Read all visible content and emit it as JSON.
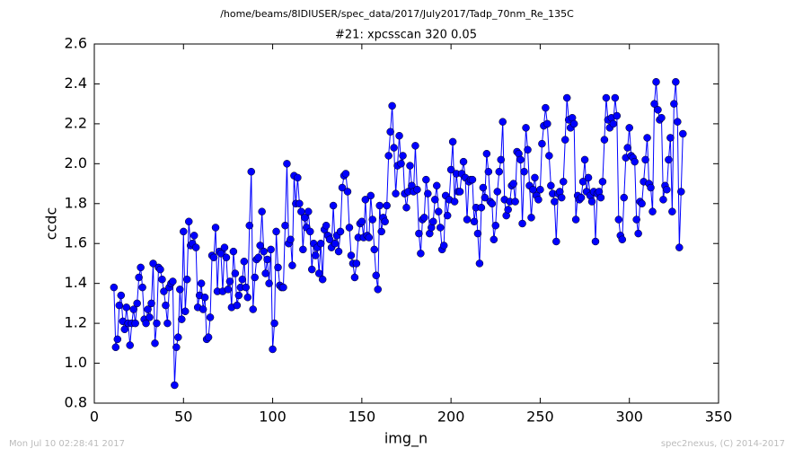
{
  "chart_data": {
    "type": "line",
    "title": "/home/beams/8IDIUSER/spec_data/2017/July2017/Tadp_70nm_Re_135C",
    "subtitle": "#21: xpcsscan 320 0.05",
    "x_label": "img_n",
    "y_label": "ccdc",
    "footer_left": "Mon Jul 10 02:28:41 2017",
    "footer_right": "spec2nexus, (C) 2014-2017",
    "xlim": [
      0,
      350
    ],
    "xticks": [
      0,
      50,
      100,
      150,
      200,
      250,
      300,
      350
    ],
    "ylim": [
      0.8,
      2.6
    ],
    "yticks": [
      0.8,
      {
        "value": 1.0,
        "label": "1.0"
      },
      1.2,
      1.4,
      1.6,
      1.8,
      {
        "value": 2.0,
        "label": "2.0"
      },
      2.2,
      2.4,
      2.6
    ],
    "x": [
      11,
      12,
      13,
      14,
      15,
      16,
      17,
      18,
      19,
      20,
      21,
      22,
      23,
      24,
      25,
      26,
      27,
      28,
      29,
      30,
      31,
      32,
      33,
      34,
      35,
      36,
      37,
      38,
      39,
      40,
      41,
      42,
      43,
      44,
      45,
      46,
      47,
      48,
      49,
      50,
      51,
      52,
      53,
      54,
      55,
      56,
      57,
      58,
      59,
      60,
      61,
      62,
      63,
      64,
      65,
      66,
      67,
      68,
      69,
      70,
      71,
      72,
      73,
      74,
      75,
      76,
      77,
      78,
      79,
      80,
      81,
      82,
      83,
      84,
      85,
      86,
      87,
      88,
      89,
      90,
      91,
      92,
      93,
      94,
      95,
      96,
      97,
      98,
      99,
      100,
      101,
      102,
      103,
      104,
      105,
      106,
      107,
      108,
      109,
      110,
      111,
      112,
      113,
      114,
      115,
      116,
      117,
      118,
      119,
      120,
      121,
      122,
      123,
      124,
      125,
      126,
      127,
      128,
      129,
      130,
      131,
      132,
      133,
      134,
      135,
      136,
      137,
      138,
      139,
      140,
      141,
      142,
      143,
      144,
      145,
      146,
      147,
      148,
      149,
      150,
      151,
      152,
      153,
      154,
      155,
      156,
      157,
      158,
      159,
      160,
      161,
      162,
      163,
      164,
      165,
      166,
      167,
      168,
      169,
      170,
      171,
      172,
      173,
      174,
      175,
      176,
      177,
      178,
      179,
      180,
      181,
      182,
      183,
      184,
      185,
      186,
      187,
      188,
      189,
      190,
      191,
      192,
      193,
      194,
      195,
      196,
      197,
      198,
      199,
      200,
      201,
      202,
      203,
      204,
      205,
      206,
      207,
      208,
      209,
      210,
      211,
      212,
      213,
      214,
      215,
      216,
      217,
      218,
      219,
      220,
      221,
      222,
      223,
      224,
      225,
      226,
      227,
      228,
      229,
      230,
      231,
      232,
      233,
      234,
      235,
      236,
      237,
      238,
      239,
      240,
      241,
      242,
      243,
      244,
      245,
      246,
      247,
      248,
      249,
      250,
      251,
      252,
      253,
      254,
      255,
      256,
      257,
      258,
      259,
      260,
      261,
      262,
      263,
      264,
      265,
      266,
      267,
      268,
      269,
      270,
      271,
      272,
      273,
      274,
      275,
      276,
      277,
      278,
      279,
      280,
      281,
      282,
      283,
      284,
      285,
      286,
      287,
      288,
      289,
      290,
      291,
      292,
      293,
      294,
      295,
      296,
      297,
      298,
      299,
      300,
      301,
      302,
      303,
      304,
      305,
      306,
      307,
      308,
      309,
      310,
      311,
      312,
      313,
      314,
      315,
      316,
      317,
      318,
      319,
      320,
      321,
      322,
      323,
      324,
      325,
      326,
      327,
      328,
      329,
      330
    ],
    "series": [
      {
        "name": "ccdc",
        "color": "#0000ff",
        "values": [
          1.38,
          1.08,
          1.12,
          1.29,
          1.34,
          1.21,
          1.17,
          1.28,
          1.2,
          1.09,
          1.2,
          1.27,
          1.2,
          1.3,
          1.43,
          1.48,
          1.38,
          1.22,
          1.2,
          1.27,
          1.23,
          1.3,
          1.5,
          1.1,
          1.2,
          1.48,
          1.47,
          1.42,
          1.36,
          1.29,
          1.2,
          1.38,
          1.4,
          1.41,
          0.89,
          1.08,
          1.13,
          1.37,
          1.22,
          1.66,
          1.26,
          1.42,
          1.71,
          1.59,
          1.6,
          1.64,
          1.58,
          1.28,
          1.34,
          1.4,
          1.27,
          1.33,
          1.12,
          1.13,
          1.23,
          1.54,
          1.53,
          1.68,
          1.36,
          1.56,
          1.55,
          1.36,
          1.58,
          1.53,
          1.37,
          1.41,
          1.28,
          1.56,
          1.45,
          1.29,
          1.34,
          1.38,
          1.42,
          1.51,
          1.38,
          1.33,
          1.69,
          1.96,
          1.27,
          1.43,
          1.52,
          1.53,
          1.59,
          1.76,
          1.56,
          1.45,
          1.52,
          1.4,
          1.57,
          1.07,
          1.2,
          1.66,
          1.48,
          1.39,
          1.38,
          1.38,
          1.69,
          2.0,
          1.6,
          1.62,
          1.49,
          1.94,
          1.8,
          1.93,
          1.8,
          1.76,
          1.57,
          1.73,
          1.68,
          1.76,
          1.66,
          1.47,
          1.6,
          1.54,
          1.58,
          1.45,
          1.6,
          1.42,
          1.67,
          1.69,
          1.64,
          1.62,
          1.58,
          1.79,
          1.6,
          1.64,
          1.56,
          1.66,
          1.88,
          1.94,
          1.95,
          1.86,
          1.68,
          1.54,
          1.5,
          1.43,
          1.5,
          1.63,
          1.7,
          1.71,
          1.63,
          1.82,
          1.64,
          1.63,
          1.84,
          1.72,
          1.57,
          1.44,
          1.37,
          1.79,
          1.66,
          1.73,
          1.71,
          1.79,
          2.04,
          2.16,
          2.29,
          2.08,
          1.85,
          1.99,
          2.14,
          2.0,
          2.04,
          1.85,
          1.78,
          1.86,
          1.99,
          1.89,
          1.86,
          2.09,
          1.87,
          1.65,
          1.55,
          1.72,
          1.73,
          1.92,
          1.85,
          1.65,
          1.68,
          1.71,
          1.82,
          1.89,
          1.76,
          1.68,
          1.57,
          1.59,
          1.84,
          1.74,
          1.82,
          1.97,
          2.11,
          1.81,
          1.95,
          1.86,
          1.86,
          1.95,
          2.01,
          1.93,
          1.72,
          1.91,
          1.92,
          1.92,
          1.71,
          1.78,
          1.65,
          1.5,
          1.78,
          1.88,
          1.83,
          2.05,
          1.96,
          1.81,
          1.8,
          1.62,
          1.69,
          1.86,
          1.96,
          2.02,
          2.21,
          1.82,
          1.74,
          1.77,
          1.81,
          1.89,
          1.9,
          1.81,
          2.06,
          2.05,
          2.02,
          1.7,
          1.96,
          2.18,
          2.07,
          1.89,
          1.73,
          1.87,
          1.93,
          1.84,
          1.82,
          1.87,
          2.1,
          2.19,
          2.28,
          2.2,
          2.04,
          1.89,
          1.85,
          1.81,
          1.61,
          1.85,
          1.86,
          1.83,
          1.91,
          2.12,
          2.33,
          2.22,
          2.18,
          2.23,
          2.2,
          1.72,
          1.84,
          1.82,
          1.83,
          1.91,
          2.02,
          1.86,
          1.93,
          1.84,
          1.81,
          1.86,
          1.61,
          1.85,
          1.86,
          1.83,
          1.91,
          2.12,
          2.33,
          2.22,
          2.18,
          2.23,
          2.2,
          2.33,
          2.24,
          1.72,
          1.64,
          1.62,
          1.83,
          2.03,
          2.08,
          2.18,
          2.04,
          2.03,
          2.01,
          1.72,
          1.65,
          1.81,
          1.8,
          1.91,
          2.02,
          2.13,
          1.9,
          1.88,
          1.76,
          2.3,
          2.41,
          2.27,
          2.22,
          2.23,
          1.82,
          1.89,
          1.87,
          2.02,
          2.13,
          1.76,
          2.3,
          2.41,
          2.21,
          1.58,
          1.86,
          2.15
        ]
      }
    ]
  }
}
